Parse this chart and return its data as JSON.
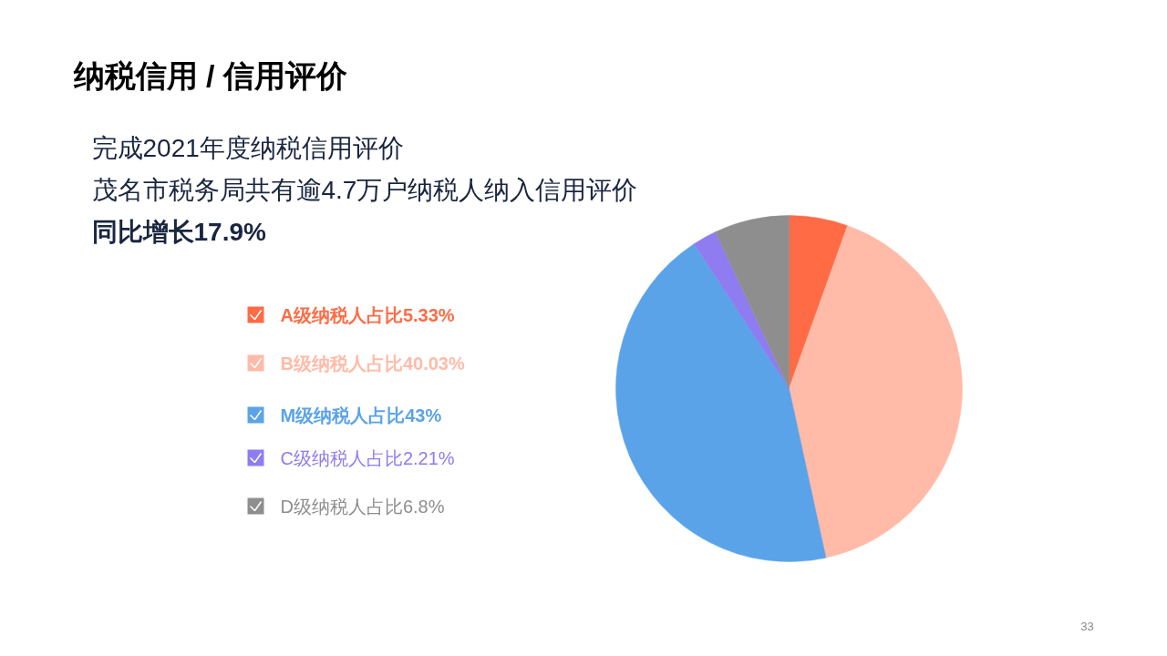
{
  "chart_data": {
    "type": "pie",
    "title": "纳税信用 / 信用评价",
    "subtitle": "完成2021年度纳税信用评价",
    "categories": [
      "A级纳税人占比5.33%",
      "B级纳税人占比40.03%",
      "M级纳税人占比43%",
      "C级纳税人占比2.21%",
      "D级纳税人占比6.8%"
    ],
    "values": [
      5.33,
      40.03,
      43,
      2.21,
      6.8
    ],
    "colors": [
      "#ff6b45",
      "#ffbba8",
      "#5ba3e8",
      "#8e7cf0",
      "#8e8e8e"
    ],
    "legend": "left",
    "annotations": [
      "茂名市税务局共有逾4.7万户纳税人纳入信用评价",
      "同比增长17.9%",
      "33"
    ]
  }
}
